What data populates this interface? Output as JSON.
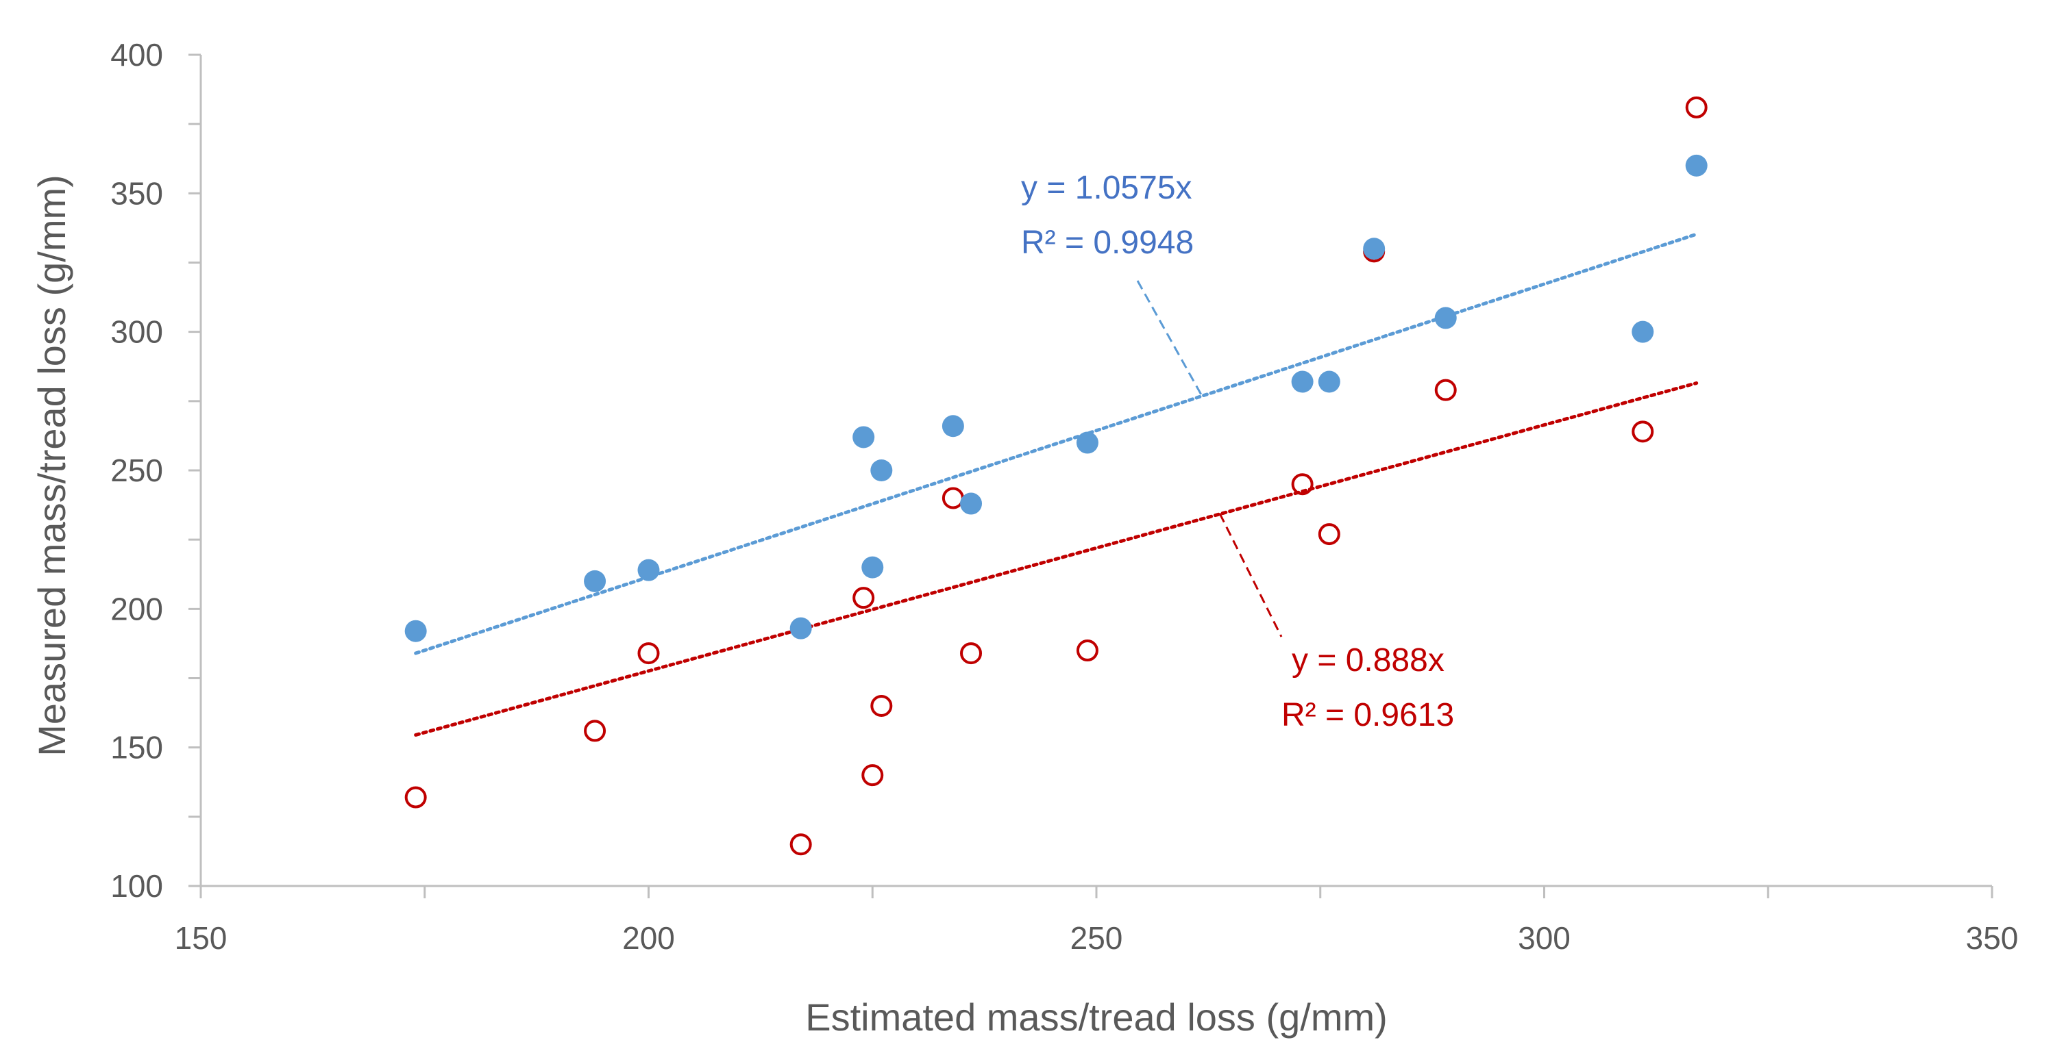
{
  "chart_data": {
    "type": "scatter",
    "title": "",
    "xlabel": "Estimated mass/tread loss (g/mm)",
    "ylabel": "Measured mass/tread loss (g/mm)",
    "xlim": [
      150,
      350
    ],
    "ylim": [
      100,
      400
    ],
    "xticks": [
      150,
      200,
      250,
      300,
      350
    ],
    "yticks": [
      100,
      150,
      200,
      250,
      300,
      350,
      400
    ],
    "xtick_labels": [
      "150",
      "200",
      "250",
      "300",
      "350"
    ],
    "ytick_labels": [
      "100",
      "150",
      "200",
      "250",
      "300",
      "350",
      "400"
    ],
    "grid": false,
    "series": [
      {
        "name": "filled",
        "marker": "filled-circle",
        "color": "#5B9BD5",
        "x": [
          174,
          194,
          200,
          217,
          224,
          225,
          226,
          234,
          236,
          249,
          273,
          276,
          281,
          289,
          311,
          317
        ],
        "y": [
          192,
          210,
          214,
          193,
          262,
          215,
          250,
          266,
          238,
          260,
          282,
          282,
          330,
          305,
          300,
          360
        ],
        "trendline": {
          "equation": "y = 1.0575x",
          "r2": "R² = 0.9948",
          "slope": 1.0575,
          "x_range": [
            174,
            317
          ]
        }
      },
      {
        "name": "hollow",
        "marker": "open-circle",
        "color": "#C00000",
        "x": [
          174,
          194,
          200,
          217,
          224,
          225,
          226,
          234,
          236,
          249,
          273,
          276,
          281,
          289,
          311,
          317
        ],
        "y": [
          132,
          156,
          184,
          115,
          204,
          140,
          165,
          240,
          184,
          185,
          245,
          227,
          329,
          279,
          264,
          381
        ],
        "trendline": {
          "equation": "y = 0.888x",
          "r2": "R² = 0.9613",
          "slope": 0.888,
          "x_range": [
            174,
            317
          ]
        }
      }
    ]
  }
}
